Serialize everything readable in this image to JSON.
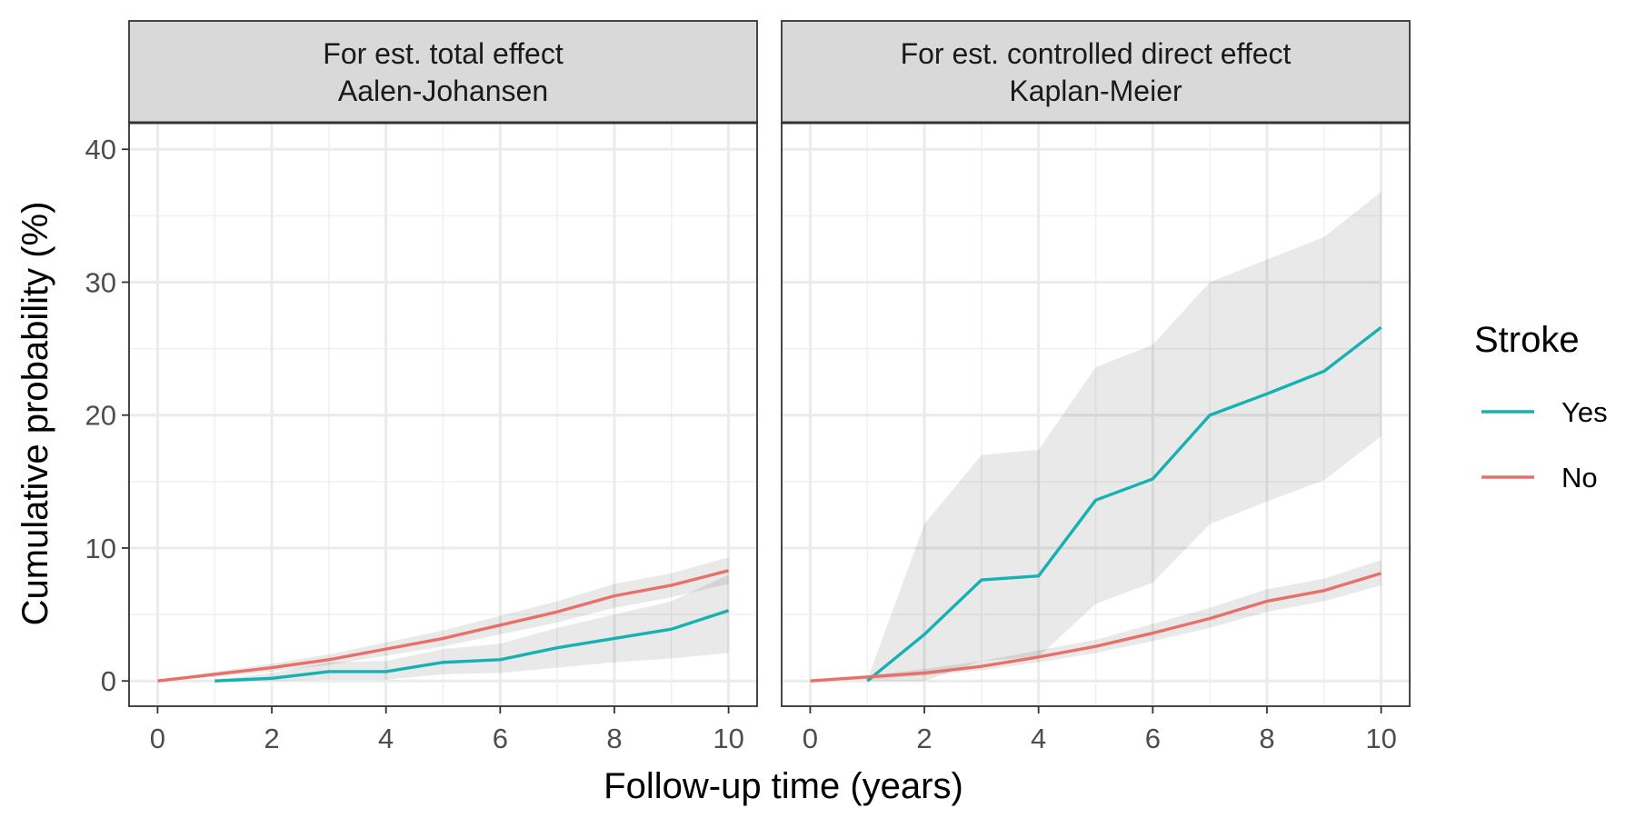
{
  "chart_data": {
    "type": "line",
    "xlabel": "Follow-up time (years)",
    "ylabel": "Cumulative probability (%)",
    "xlim": [
      -0.5,
      10.5
    ],
    "ylim": [
      -1.9,
      42
    ],
    "x_ticks": [
      0,
      2,
      4,
      6,
      8,
      10
    ],
    "y_ticks": [
      0,
      10,
      20,
      30,
      40
    ],
    "grid": true,
    "legend": {
      "title": "Stroke",
      "position": "right",
      "entries": [
        {
          "label": "Yes",
          "color": "#16B1B3"
        },
        {
          "label": "No",
          "color": "#E8706A"
        }
      ]
    },
    "panels": [
      {
        "strip_lines": [
          "For est. total effect",
          "Aalen-Johansen"
        ],
        "series": [
          {
            "name": "Yes",
            "color": "#16B1B3",
            "x": [
              1,
              2,
              3,
              4,
              5,
              6,
              7,
              8,
              9,
              10
            ],
            "y": [
              0,
              0.2,
              0.7,
              0.7,
              1.4,
              1.6,
              2.5,
              3.2,
              3.9,
              5.3
            ],
            "lower": [
              0,
              0,
              0.1,
              0.1,
              0.5,
              0.6,
              1.0,
              1.4,
              1.7,
              2.1
            ],
            "upper": [
              0.1,
              0.6,
              1.4,
              1.5,
              2.4,
              2.8,
              4.0,
              5.0,
              6.0,
              8.0
            ]
          },
          {
            "name": "No",
            "color": "#E8706A",
            "x": [
              0,
              1,
              2,
              3,
              4,
              5,
              6,
              7,
              8,
              9,
              10
            ],
            "y": [
              0,
              0.5,
              1.0,
              1.6,
              2.4,
              3.2,
              4.2,
              5.2,
              6.4,
              7.2,
              8.3
            ],
            "lower": [
              0,
              0.3,
              0.7,
              1.2,
              1.9,
              2.6,
              3.5,
              4.4,
              5.5,
              6.3,
              7.3
            ],
            "upper": [
              0,
              0.7,
              1.3,
              2.0,
              2.9,
              3.8,
              4.9,
              6.0,
              7.3,
              8.1,
              9.3
            ]
          }
        ]
      },
      {
        "strip_lines": [
          "For est. controlled direct effect",
          "Kaplan-Meier"
        ],
        "series": [
          {
            "name": "Yes",
            "color": "#16B1B3",
            "x": [
              1,
              2,
              3,
              4,
              5,
              6,
              7,
              8,
              9,
              10
            ],
            "y": [
              0,
              3.5,
              7.6,
              7.9,
              13.6,
              15.2,
              20.0,
              21.6,
              23.3,
              26.6
            ],
            "lower": [
              0,
              0,
              1.5,
              1.8,
              5.8,
              7.4,
              11.8,
              13.5,
              15.1,
              18.4
            ],
            "upper": [
              0.1,
              11.8,
              17.0,
              17.4,
              23.6,
              25.3,
              30.0,
              31.7,
              33.4,
              36.8
            ]
          },
          {
            "name": "No",
            "color": "#E8706A",
            "x": [
              0,
              1,
              2,
              3,
              4,
              5,
              6,
              7,
              8,
              9,
              10
            ],
            "y": [
              0,
              0.3,
              0.6,
              1.1,
              1.8,
              2.6,
              3.6,
              4.7,
              6.0,
              6.8,
              8.1
            ],
            "lower": [
              0,
              0.1,
              0.4,
              0.8,
              1.4,
              2.1,
              3.0,
              4.0,
              5.2,
              6.0,
              7.2
            ],
            "upper": [
              0,
              0.4,
              0.9,
              1.5,
              2.3,
              3.1,
              4.3,
              5.5,
              6.9,
              7.7,
              9.1
            ]
          }
        ]
      }
    ]
  }
}
